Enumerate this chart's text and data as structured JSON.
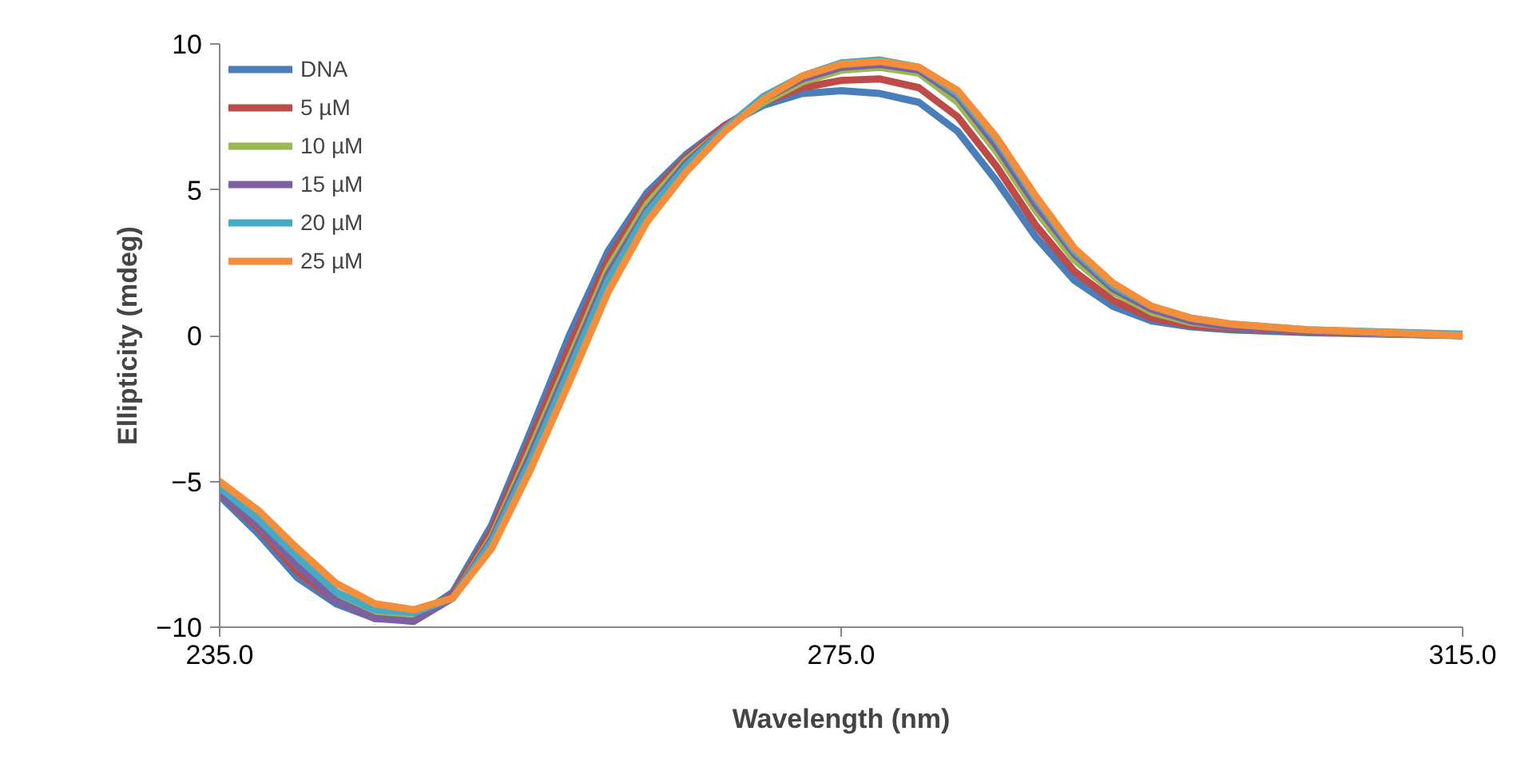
{
  "chart_data": {
    "type": "line",
    "xlabel": "Wavelength (nm)",
    "ylabel": "Ellipticity (mdeg)",
    "x": [
      235,
      237.5,
      240,
      242.5,
      245,
      247.5,
      250,
      252.5,
      255,
      257.5,
      260,
      262.5,
      265,
      267.5,
      270,
      272.5,
      275,
      277.5,
      280,
      282.5,
      285,
      287.5,
      290,
      292.5,
      295,
      297.5,
      300,
      305,
      310,
      315
    ],
    "series": [
      {
        "name": "DNA",
        "color": "#4a7ebb",
        "values": [
          -5.5,
          -6.8,
          -8.3,
          -9.2,
          -9.7,
          -9.7,
          -8.8,
          -6.5,
          -3.3,
          0,
          2.9,
          4.9,
          6.2,
          7.2,
          7.9,
          8.3,
          8.4,
          8.3,
          8.0,
          7.0,
          5.3,
          3.4,
          1.9,
          1.0,
          0.5,
          0.3,
          0.2,
          0.1,
          0.05,
          0
        ]
      },
      {
        "name": "5 µM",
        "color": "#be4b48",
        "values": [
          -5.4,
          -6.6,
          -8.1,
          -9.1,
          -9.7,
          -9.7,
          -8.9,
          -6.7,
          -3.6,
          -0.4,
          2.6,
          4.7,
          6.1,
          7.2,
          8.0,
          8.5,
          8.75,
          8.8,
          8.5,
          7.5,
          5.8,
          3.8,
          2.2,
          1.2,
          0.6,
          0.35,
          0.25,
          0.12,
          0.06,
          0
        ]
      },
      {
        "name": "10 µM",
        "color": "#98b954",
        "values": [
          -5.3,
          -6.5,
          -7.9,
          -9.0,
          -9.6,
          -9.7,
          -9.0,
          -6.9,
          -3.9,
          -0.8,
          2.3,
          4.5,
          6.0,
          7.1,
          8.0,
          8.7,
          9.1,
          9.2,
          9.0,
          8.0,
          6.3,
          4.3,
          2.6,
          1.5,
          0.8,
          0.45,
          0.3,
          0.15,
          0.07,
          0
        ]
      },
      {
        "name": "15 µM",
        "color": "#7d60a0",
        "values": [
          -5.4,
          -6.5,
          -7.9,
          -9.1,
          -9.7,
          -9.8,
          -9.0,
          -7.0,
          -4.1,
          -1.0,
          2.1,
          4.3,
          5.9,
          7.1,
          8.1,
          8.8,
          9.2,
          9.3,
          9.1,
          8.2,
          6.5,
          4.5,
          2.8,
          1.6,
          0.9,
          0.5,
          0.3,
          0.15,
          0.08,
          0
        ]
      },
      {
        "name": "20 µM",
        "color": "#46aac5",
        "values": [
          -5.2,
          -6.3,
          -7.6,
          -8.8,
          -9.4,
          -9.5,
          -9.0,
          -7.1,
          -4.3,
          -1.2,
          1.9,
          4.2,
          5.8,
          7.1,
          8.2,
          8.9,
          9.35,
          9.45,
          9.2,
          8.3,
          6.7,
          4.7,
          2.9,
          1.7,
          1.0,
          0.6,
          0.4,
          0.2,
          0.12,
          0.05
        ]
      },
      {
        "name": "25 µM",
        "color": "#f38f3c",
        "values": [
          -5.0,
          -6.0,
          -7.3,
          -8.5,
          -9.2,
          -9.4,
          -9.0,
          -7.3,
          -4.6,
          -1.6,
          1.5,
          3.9,
          5.6,
          7.0,
          8.1,
          8.9,
          9.3,
          9.4,
          9.2,
          8.4,
          6.8,
          4.8,
          3.0,
          1.8,
          1.0,
          0.6,
          0.4,
          0.2,
          0.1,
          0
        ]
      }
    ],
    "xlim": [
      235,
      315
    ],
    "ylim": [
      -10,
      10
    ],
    "xticks": [
      {
        "value": 235,
        "label": "235.0"
      },
      {
        "value": 275,
        "label": "275.0"
      },
      {
        "value": 315,
        "label": "315.0"
      }
    ],
    "yticks": [
      -10,
      -5,
      0,
      5,
      10
    ],
    "grid": false,
    "legend": "top left",
    "marker": "none",
    "line_style": "solid"
  }
}
